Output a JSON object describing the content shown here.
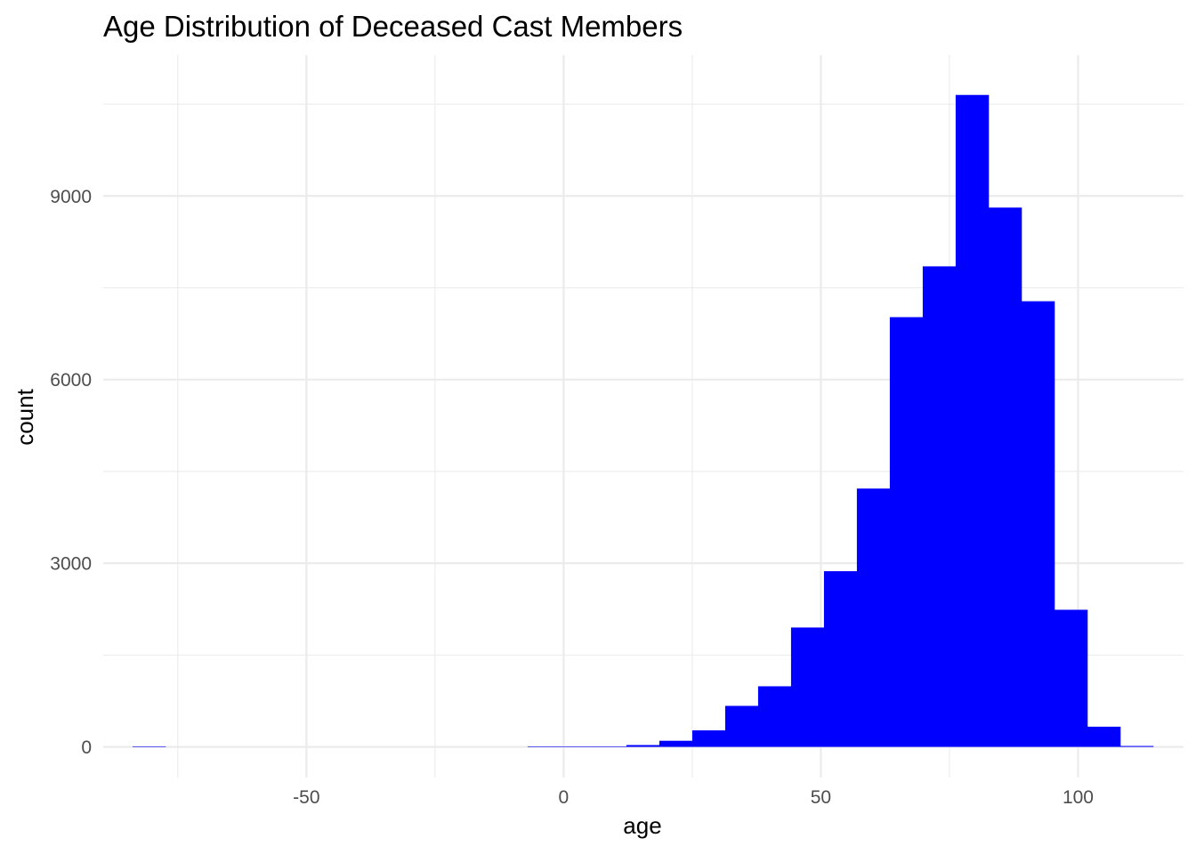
{
  "chart_data": {
    "type": "bar",
    "title": "Age Distribution of Deceased Cast Members",
    "xlabel": "age",
    "ylabel": "count",
    "xlim": [
      -89.5,
      120.5
    ],
    "ylim": [
      -500,
      11300
    ],
    "x_ticks": [
      -50,
      0,
      50,
      100
    ],
    "x_tick_labels": [
      "-50",
      "0",
      "50",
      "100"
    ],
    "x_minor_ticks": [
      -75,
      -25,
      25,
      75
    ],
    "y_ticks": [
      0,
      3000,
      6000,
      9000
    ],
    "y_tick_labels": [
      "0",
      "3000",
      "6000",
      "9000"
    ],
    "y_minor_ticks": [
      1500,
      4500,
      7500,
      10500
    ],
    "grid": true,
    "legend": "none",
    "bin_width": 6.4,
    "bins": [
      {
        "x0": -83.8,
        "x1": -77.4,
        "count": 1
      },
      {
        "x0": -77.4,
        "x1": -71.0,
        "count": 0
      },
      {
        "x0": -71.0,
        "x1": -64.6,
        "count": 0
      },
      {
        "x0": -64.6,
        "x1": -58.2,
        "count": 0
      },
      {
        "x0": -58.2,
        "x1": -51.8,
        "count": 0
      },
      {
        "x0": -51.8,
        "x1": -45.4,
        "count": 0
      },
      {
        "x0": -45.4,
        "x1": -39.0,
        "count": 0
      },
      {
        "x0": -39.0,
        "x1": -32.6,
        "count": 0
      },
      {
        "x0": -32.6,
        "x1": -26.2,
        "count": 0
      },
      {
        "x0": -26.2,
        "x1": -19.8,
        "count": 0
      },
      {
        "x0": -19.8,
        "x1": -13.4,
        "count": 0
      },
      {
        "x0": -13.4,
        "x1": -7.0,
        "count": 0
      },
      {
        "x0": -7.0,
        "x1": -0.6,
        "count": 1
      },
      {
        "x0": -0.6,
        "x1": 5.8,
        "count": 2
      },
      {
        "x0": 5.8,
        "x1": 12.2,
        "count": 5
      },
      {
        "x0": 12.2,
        "x1": 18.6,
        "count": 30
      },
      {
        "x0": 18.6,
        "x1": 25.0,
        "count": 100
      },
      {
        "x0": 25.0,
        "x1": 31.4,
        "count": 270
      },
      {
        "x0": 31.4,
        "x1": 37.8,
        "count": 670
      },
      {
        "x0": 37.8,
        "x1": 44.2,
        "count": 990
      },
      {
        "x0": 44.2,
        "x1": 50.6,
        "count": 1950
      },
      {
        "x0": 50.6,
        "x1": 57.0,
        "count": 2870
      },
      {
        "x0": 57.0,
        "x1": 63.4,
        "count": 4220
      },
      {
        "x0": 63.4,
        "x1": 69.8,
        "count": 7020
      },
      {
        "x0": 69.8,
        "x1": 76.2,
        "count": 7850
      },
      {
        "x0": 76.2,
        "x1": 82.6,
        "count": 10650
      },
      {
        "x0": 82.6,
        "x1": 89.0,
        "count": 8810
      },
      {
        "x0": 89.0,
        "x1": 95.4,
        "count": 7280
      },
      {
        "x0": 95.4,
        "x1": 101.8,
        "count": 2240
      },
      {
        "x0": 101.8,
        "x1": 108.2,
        "count": 330
      },
      {
        "x0": 108.2,
        "x1": 114.6,
        "count": 15
      }
    ],
    "colors": {
      "bar_fill": "#0000ff",
      "grid": "#ebebeb",
      "tick_text": "#4d4d4d",
      "text": "#000000",
      "background": "#ffffff"
    }
  }
}
